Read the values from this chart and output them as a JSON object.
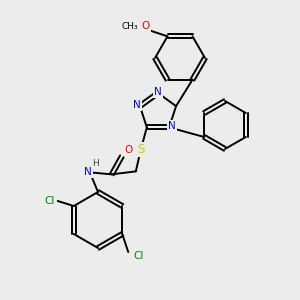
{
  "bg_color": "#ececec",
  "atom_colors": {
    "N": "#0000ff",
    "O": "#ff0000",
    "S": "#cccc00",
    "Cl": "#008800",
    "C": "#000000",
    "H": "#444444"
  },
  "bond_color": "#000000"
}
